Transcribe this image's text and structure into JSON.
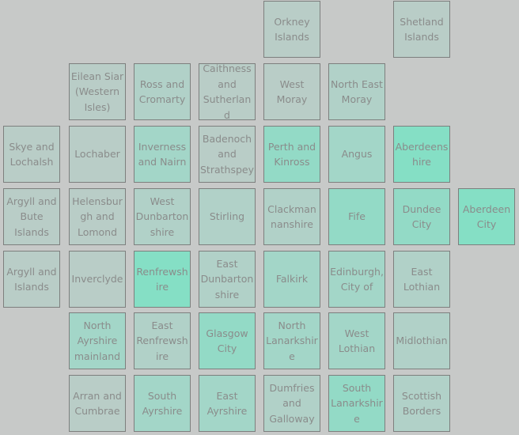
{
  "map": {
    "tiles": [
      {
        "id": "orkney",
        "name": "Orkney Islands",
        "shade": 0
      },
      {
        "id": "shetland",
        "name": "Shetland Islands",
        "shade": 0
      },
      {
        "id": "eilean-siar",
        "name": "Eilean Siar (Western Isles)",
        "shade": 0
      },
      {
        "id": "ross-cromarty",
        "name": "Ross and Cromarty",
        "shade": 1
      },
      {
        "id": "caithness",
        "name": "Caithness and Sutherland",
        "shade": 0
      },
      {
        "id": "west-moray",
        "name": "West Moray",
        "shade": 0
      },
      {
        "id": "ne-moray",
        "name": "North East Moray",
        "shade": 1
      },
      {
        "id": "skye",
        "name": "Skye and Lochalsh",
        "shade": 0
      },
      {
        "id": "lochaber",
        "name": "Lochaber",
        "shade": 0
      },
      {
        "id": "inverness",
        "name": "Inverness and Nairn",
        "shade": 2
      },
      {
        "id": "badenoch",
        "name": "Badenoch and Strathspey",
        "shade": 0
      },
      {
        "id": "perth",
        "name": "Perth and Kinross",
        "shade": 3
      },
      {
        "id": "angus",
        "name": "Angus",
        "shade": 2
      },
      {
        "id": "aberdeenshire",
        "name": "Aberdeenshire",
        "shade": 4
      },
      {
        "id": "argyll-bute",
        "name": "Argyll and Bute Islands",
        "shade": 0
      },
      {
        "id": "helensburgh",
        "name": "Helensburgh and Lomond",
        "shade": 0
      },
      {
        "id": "west-dunbartonshire",
        "name": "West Dunbartonshire",
        "shade": 1
      },
      {
        "id": "stirling",
        "name": "Stirling",
        "shade": 1
      },
      {
        "id": "clackmannanshire",
        "name": "Clackmannanshire",
        "shade": 1
      },
      {
        "id": "fife",
        "name": "Fife",
        "shade": 3
      },
      {
        "id": "dundee",
        "name": "Dundee City",
        "shade": 3
      },
      {
        "id": "aberdeen",
        "name": "Aberdeen City",
        "shade": 4
      },
      {
        "id": "argyll-islands",
        "name": "Argyll and Islands",
        "shade": 0
      },
      {
        "id": "inverclyde",
        "name": "Inverclyde",
        "shade": 0
      },
      {
        "id": "renfrewshire",
        "name": "Renfrewshire",
        "shade": 4
      },
      {
        "id": "east-dunbartonshire",
        "name": "East Dunbartonshire",
        "shade": 1
      },
      {
        "id": "falkirk",
        "name": "Falkirk",
        "shade": 2
      },
      {
        "id": "edinburgh",
        "name": "Edinburgh, City of",
        "shade": 2
      },
      {
        "id": "east-lothian",
        "name": "East Lothian",
        "shade": 1
      },
      {
        "id": "north-ayrshire",
        "name": "North Ayrshire mainland",
        "shade": 2
      },
      {
        "id": "east-renfrewshire",
        "name": "East Renfrewshire",
        "shade": 1
      },
      {
        "id": "glasgow",
        "name": "Glasgow City",
        "shade": 3
      },
      {
        "id": "north-lanarkshire",
        "name": "North Lanarkshire",
        "shade": 2
      },
      {
        "id": "west-lothian",
        "name": "West Lothian",
        "shade": 2
      },
      {
        "id": "midlothian",
        "name": "Midlothian",
        "shade": 1
      },
      {
        "id": "arran",
        "name": "Arran and Cumbrae",
        "shade": 0
      },
      {
        "id": "south-ayrshire",
        "name": "South Ayrshire",
        "shade": 2
      },
      {
        "id": "east-ayrshire",
        "name": "East Ayrshire",
        "shade": 2
      },
      {
        "id": "dumfries",
        "name": "Dumfries and Galloway",
        "shade": 1
      },
      {
        "id": "south-lanarkshire",
        "name": "South Lanarkshire",
        "shade": 3
      },
      {
        "id": "borders",
        "name": "Scottish Borders",
        "shade": 1
      }
    ]
  }
}
